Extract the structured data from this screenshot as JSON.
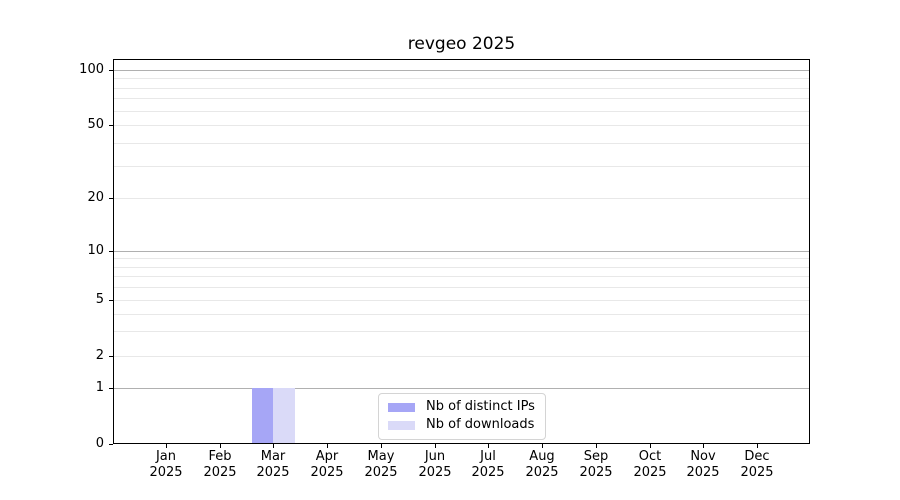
{
  "chart_data": {
    "type": "bar",
    "title": "revgeo 2025",
    "categories": [
      "Jan",
      "Feb",
      "Mar",
      "Apr",
      "May",
      "Jun",
      "Jul",
      "Aug",
      "Sep",
      "Oct",
      "Nov",
      "Dec"
    ],
    "year_label": "2025",
    "series": [
      {
        "name": "Nb of distinct IPs",
        "color": "#a6a6f6",
        "values": [
          0,
          0,
          1,
          0,
          0,
          0,
          0,
          0,
          0,
          0,
          0,
          0
        ]
      },
      {
        "name": "Nb of downloads",
        "color": "#dadaf8",
        "values": [
          0,
          0,
          1,
          0,
          0,
          0,
          0,
          0,
          0,
          0,
          0,
          0
        ]
      }
    ],
    "xlabel": "",
    "ylabel": "",
    "yticks": [
      0,
      1,
      2,
      5,
      10,
      20,
      50,
      100
    ],
    "yscale": "symlog",
    "ylim": [
      0,
      113
    ],
    "grid": "horizontal, major and minor",
    "legend_position": "lower center inside axes"
  },
  "colors": {
    "major_grid": "#b0b0b0",
    "minor_grid": "#e8e8e8",
    "axis": "#000000",
    "text": "#000000",
    "legend_border": "#d4d4d4",
    "legend_bg": "#ffffff",
    "background": "#ffffff"
  }
}
